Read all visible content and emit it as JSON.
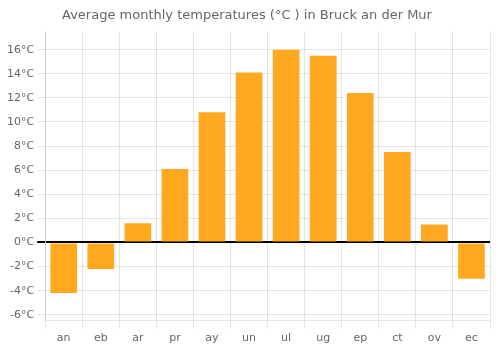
{
  "chart_data": {
    "type": "bar",
    "title": "Average monthly temperatures (°C ) in Bruck an der Mur",
    "categories": [
      "an",
      "eb",
      "ar",
      "pr",
      "ay",
      "un",
      "ul",
      "ug",
      "ep",
      "ct",
      "ov",
      "ec"
    ],
    "values": [
      -4.2,
      -2.2,
      1.6,
      6.1,
      10.8,
      14.1,
      16.0,
      15.5,
      12.4,
      7.5,
      1.5,
      -3.0
    ],
    "color": "#FFA820",
    "ylim": [
      -6.5,
      17.5
    ],
    "yticks": [
      {
        "value": -6,
        "label": "-6°C"
      },
      {
        "value": -4,
        "label": "-4°C"
      },
      {
        "value": -2,
        "label": "-2°C"
      },
      {
        "value": 0,
        "label": "0°C"
      },
      {
        "value": 2,
        "label": "2°C"
      },
      {
        "value": 4,
        "label": "4°C"
      },
      {
        "value": 6,
        "label": "6°C"
      },
      {
        "value": 8,
        "label": "8°C"
      },
      {
        "value": 10,
        "label": "10°C"
      },
      {
        "value": 12,
        "label": "12°C"
      },
      {
        "value": 14,
        "label": "14°C"
      },
      {
        "value": 16,
        "label": "16°C"
      }
    ],
    "grid": true
  }
}
